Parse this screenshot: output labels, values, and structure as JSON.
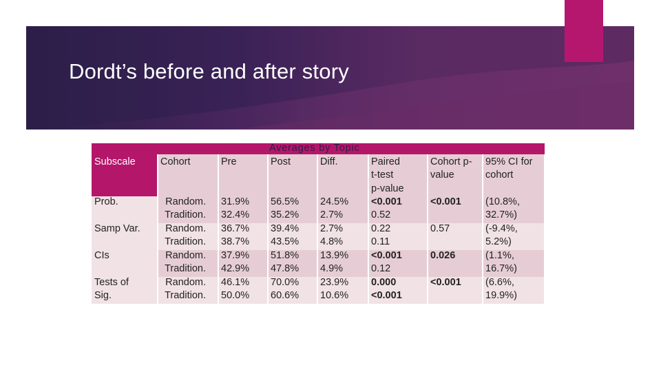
{
  "slide": {
    "title": "Dordt’s before and after story"
  },
  "colors": {
    "banner_dark": "#2b1e48",
    "banner_mid": "#5a2a63",
    "accent": "#b5176e",
    "table_header": "#b4166a",
    "cell_pink": "#e6cdd5",
    "cell_light": "#f1e2e6"
  },
  "table": {
    "group_header": "Averages by Topic",
    "headers": {
      "subscale": "Subscale",
      "cohort": "Cohort",
      "pre": "Pre",
      "post": "Post",
      "diff": "Diff.",
      "paired": [
        "Paired",
        "t-test",
        "p-value"
      ],
      "cohort_p": [
        "Cohort p-",
        "value"
      ],
      "ci": [
        "95% CI for",
        "cohort"
      ]
    },
    "rows": [
      {
        "subscale": [
          "Prob."
        ],
        "cohort": [
          "Random.",
          "Tradition."
        ],
        "pre": [
          "31.9%",
          "32.4%"
        ],
        "post": [
          "56.5%",
          "35.2%"
        ],
        "diff": [
          "24.5%",
          "2.7%"
        ],
        "paired": [
          "<0.001",
          "0.52"
        ],
        "paired_bold": [
          true,
          false
        ],
        "cohort_p": "<0.001",
        "cohort_p_bold": true,
        "ci": [
          "(10.8%,",
          "32.7%)"
        ]
      },
      {
        "subscale": [
          "Samp Var."
        ],
        "cohort": [
          "Random.",
          "Tradition."
        ],
        "pre": [
          "36.7%",
          "38.7%"
        ],
        "post": [
          "39.4%",
          "43.5%"
        ],
        "diff": [
          "2.7%",
          "4.8%"
        ],
        "paired": [
          "0.22",
          "0.11"
        ],
        "paired_bold": [
          false,
          false
        ],
        "cohort_p": "0.57",
        "cohort_p_bold": false,
        "ci": [
          "(-9.4%,",
          "5.2%)"
        ]
      },
      {
        "subscale": [
          "CIs"
        ],
        "cohort": [
          "Random.",
          "Tradition."
        ],
        "pre": [
          "37.9%",
          "42.9%"
        ],
        "post": [
          "51.8%",
          "47.8%"
        ],
        "diff": [
          "13.9%",
          "4.9%"
        ],
        "paired": [
          "<0.001",
          "0.12"
        ],
        "paired_bold": [
          true,
          false
        ],
        "cohort_p": "0.026",
        "cohort_p_bold": true,
        "ci": [
          "(1.1%,",
          "16.7%)"
        ]
      },
      {
        "subscale": [
          "Tests of",
          "Sig."
        ],
        "cohort": [
          "Random.",
          "Tradition."
        ],
        "pre": [
          "46.1%",
          "50.0%"
        ],
        "post": [
          "70.0%",
          "60.6%"
        ],
        "diff": [
          "23.9%",
          "10.6%"
        ],
        "paired": [
          "0.000",
          "<0.001"
        ],
        "paired_bold": [
          true,
          true
        ],
        "cohort_p": "<0.001",
        "cohort_p_bold": true,
        "ci": [
          "(6.6%,",
          "19.9%)"
        ]
      }
    ]
  }
}
